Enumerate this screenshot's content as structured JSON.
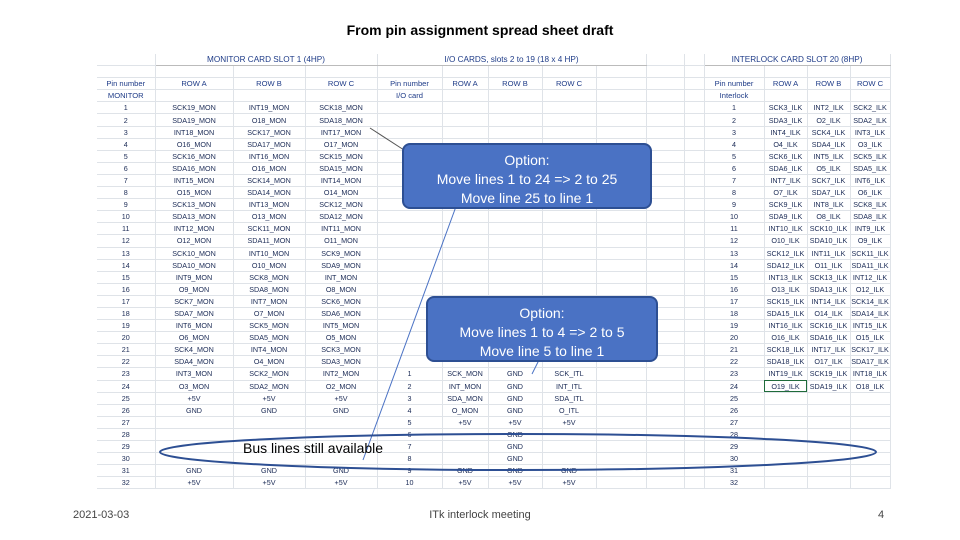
{
  "title": "From pin assignment spread sheet draft",
  "sections": {
    "monitor": "MONITOR CARD SLOT 1 (4HP)",
    "io": "I/O CARDS, slots 2 to 19 (18 x 4 HP)",
    "interlock": "INTERLOCK CARD SLOT 20 (8HP)"
  },
  "headers": {
    "pin1": "Pin number",
    "monitor": "MONITOR",
    "rowA": "ROW A",
    "rowB": "ROW B",
    "rowC": "ROW C",
    "pinIO": "Pin number",
    "ioCard": "I/O card",
    "pinIlk": "Pin number",
    "interlock": "Interlock"
  },
  "monitor_rows": [
    [
      "1",
      "SCK19_MON",
      "INT19_MON",
      "SCK18_MON"
    ],
    [
      "2",
      "SDA19_MON",
      "O18_MON",
      "SDA18_MON"
    ],
    [
      "3",
      "INT18_MON",
      "SCK17_MON",
      "INT17_MON"
    ],
    [
      "4",
      "O16_MON",
      "SDA17_MON",
      "O17_MON"
    ],
    [
      "5",
      "SCK16_MON",
      "INT16_MON",
      "SCK15_MON"
    ],
    [
      "6",
      "SDA16_MON",
      "O16_MON",
      "SDA15_MON"
    ],
    [
      "7",
      "INT15_MON",
      "SCK14_MON",
      "INT14_MON"
    ],
    [
      "8",
      "O15_MON",
      "SDA14_MON",
      "O14_MON"
    ],
    [
      "9",
      "SCK13_MON",
      "INT13_MON",
      "SCK12_MON"
    ],
    [
      "10",
      "SDA13_MON",
      "O13_MON",
      "SDA12_MON"
    ],
    [
      "11",
      "INT12_MON",
      "SCK11_MON",
      "INT11_MON"
    ],
    [
      "12",
      "O12_MON",
      "SDA11_MON",
      "O11_MON"
    ],
    [
      "13",
      "SCK10_MON",
      "INT10_MON",
      "SCK9_MON"
    ],
    [
      "14",
      "SDA10_MON",
      "O10_MON",
      "SDA9_MON"
    ],
    [
      "15",
      "INT9_MON",
      "SCK8_MON",
      "INT_MON"
    ],
    [
      "16",
      "O9_MON",
      "SDA8_MON",
      "O8_MON"
    ],
    [
      "17",
      "SCK7_MON",
      "INT7_MON",
      "SCK6_MON"
    ],
    [
      "18",
      "SDA7_MON",
      "O7_MON",
      "SDA6_MON"
    ],
    [
      "19",
      "INT6_MON",
      "SCK5_MON",
      "INT5_MON"
    ],
    [
      "20",
      "O6_MON",
      "SDA5_MON",
      "O5_MON"
    ],
    [
      "21",
      "SCK4_MON",
      "INT4_MON",
      "SCK3_MON"
    ],
    [
      "22",
      "SDA4_MON",
      "O4_MON",
      "SDA3_MON"
    ],
    [
      "23",
      "INT3_MON",
      "SCK2_MON",
      "INT2_MON"
    ],
    [
      "24",
      "O3_MON",
      "SDA2_MON",
      "O2_MON"
    ],
    [
      "25",
      "+5V",
      "+5V",
      "+5V"
    ],
    [
      "26",
      "GND",
      "GND",
      "GND"
    ],
    [
      "27",
      "",
      "",
      ""
    ],
    [
      "28",
      "",
      "",
      ""
    ],
    [
      "29",
      "",
      "",
      ""
    ],
    [
      "30",
      "",
      "",
      ""
    ],
    [
      "31",
      "GND",
      "GND",
      "GND"
    ],
    [
      "32",
      "+5V",
      "+5V",
      "+5V"
    ]
  ],
  "io_rows": [
    [
      "",
      "",
      "",
      ""
    ],
    [
      "",
      "",
      "",
      ""
    ],
    [
      "",
      "",
      "",
      ""
    ],
    [
      "",
      "",
      "",
      ""
    ],
    [
      "",
      "",
      "",
      ""
    ],
    [
      "",
      "",
      "",
      ""
    ],
    [
      "",
      "",
      "",
      ""
    ],
    [
      "",
      "",
      "",
      ""
    ],
    [
      "",
      "",
      "",
      ""
    ],
    [
      "",
      "",
      "",
      ""
    ],
    [
      "",
      "",
      "",
      ""
    ],
    [
      "",
      "",
      "",
      ""
    ],
    [
      "",
      "",
      "",
      ""
    ],
    [
      "",
      "",
      "",
      ""
    ],
    [
      "",
      "",
      "",
      ""
    ],
    [
      "",
      "",
      "",
      ""
    ],
    [
      "",
      "",
      "",
      ""
    ],
    [
      "",
      "",
      "",
      ""
    ],
    [
      "",
      "",
      "",
      ""
    ],
    [
      "",
      "",
      "",
      ""
    ],
    [
      "",
      "",
      "",
      ""
    ],
    [
      "",
      "",
      "",
      ""
    ],
    [
      "1",
      "SCK_MON",
      "GND",
      "SCK_ITL"
    ],
    [
      "2",
      "INT_MON",
      "GND",
      "INT_ITL"
    ],
    [
      "3",
      "SDA_MON",
      "GND",
      "SDA_ITL"
    ],
    [
      "4",
      "O_MON",
      "GND",
      "O_ITL"
    ],
    [
      "5",
      "+5V",
      "+5V",
      "+5V"
    ],
    [
      "6",
      "",
      "GND",
      ""
    ],
    [
      "7",
      "",
      "GND",
      ""
    ],
    [
      "8",
      "",
      "GND",
      ""
    ],
    [
      "9",
      "GND",
      "GND",
      "GND"
    ],
    [
      "10",
      "+5V",
      "+5V",
      "+5V"
    ]
  ],
  "interlock_rows": [
    [
      "1",
      "SCK3_ILK",
      "INT2_ILK",
      "SCK2_ILK"
    ],
    [
      "2",
      "SDA3_ILK",
      "O2_ILK",
      "SDA2_ILK"
    ],
    [
      "3",
      "INT4_ILK",
      "SCK4_ILK",
      "INT3_ILK"
    ],
    [
      "4",
      "O4_ILK",
      "SDA4_ILK",
      "O3_ILK"
    ],
    [
      "5",
      "SCK6_ILK",
      "INT5_ILK",
      "SCK5_ILK"
    ],
    [
      "6",
      "SDA6_ILK",
      "O5_ILK",
      "SDA5_ILK"
    ],
    [
      "7",
      "INT7_ILK",
      "SCK7_ILK",
      "INT6_ILK"
    ],
    [
      "8",
      "O7_ILK",
      "SDA7_ILK",
      "O6_ILK"
    ],
    [
      "9",
      "SCK9_ILK",
      "INT8_ILK",
      "SCK8_ILK"
    ],
    [
      "10",
      "SDA9_ILK",
      "O8_ILK",
      "SDA8_ILK"
    ],
    [
      "11",
      "INT10_ILK",
      "SCK10_ILK",
      "INT9_ILK"
    ],
    [
      "12",
      "O10_ILK",
      "SDA10_ILK",
      "O9_ILK"
    ],
    [
      "13",
      "SCK12_ILK",
      "INT11_ILK",
      "SCK11_ILK"
    ],
    [
      "14",
      "SDA12_ILK",
      "O11_ILK",
      "SDA11_ILK"
    ],
    [
      "15",
      "INT13_ILK",
      "SCK13_ILK",
      "INT12_ILK"
    ],
    [
      "16",
      "O13_ILK",
      "SDA13_ILK",
      "O12_ILK"
    ],
    [
      "17",
      "SCK15_ILK",
      "INT14_ILK",
      "SCK14_ILK"
    ],
    [
      "18",
      "SDA15_ILK",
      "O14_ILK",
      "SDA14_ILK"
    ],
    [
      "19",
      "INT16_ILK",
      "SCK16_ILK",
      "INT15_ILK"
    ],
    [
      "20",
      "O16_ILK",
      "SDA16_ILK",
      "O15_ILK"
    ],
    [
      "21",
      "SCK18_ILK",
      "INT17_ILK",
      "SCK17_ILK"
    ],
    [
      "22",
      "SDA18_ILK",
      "O17_ILK",
      "SDA17_ILK"
    ],
    [
      "23",
      "INT19_ILK",
      "SCK19_ILK",
      "INT18_ILK"
    ],
    [
      "24",
      "O19_ILK",
      "SDA19_ILK",
      "O18_ILK"
    ],
    [
      "25",
      "",
      "",
      ""
    ],
    [
      "26",
      "",
      "",
      ""
    ],
    [
      "27",
      "",
      "",
      ""
    ],
    [
      "28",
      "",
      "",
      ""
    ],
    [
      "29",
      "",
      "",
      ""
    ],
    [
      "30",
      "",
      "",
      ""
    ],
    [
      "31",
      "",
      "",
      ""
    ],
    [
      "32",
      "",
      "",
      ""
    ]
  ],
  "callout1": {
    "title": "Option:",
    "line1": "Move lines 1 to 24 => 2 to 25",
    "line2": "Move line 25 to line 1"
  },
  "callout2": {
    "title": "Option:",
    "line1": "Move lines 1 to 4 => 2 to 5",
    "line2": "Move line 5 to line 1"
  },
  "bus_label": "Bus lines still available",
  "footer": {
    "date": "2021-03-03",
    "center": "ITk interlock meeting",
    "page": "4"
  },
  "colors": {
    "callout_fill": "#4a72c4",
    "callout_border": "#2d4f93",
    "header_text": "#1f3c88"
  }
}
